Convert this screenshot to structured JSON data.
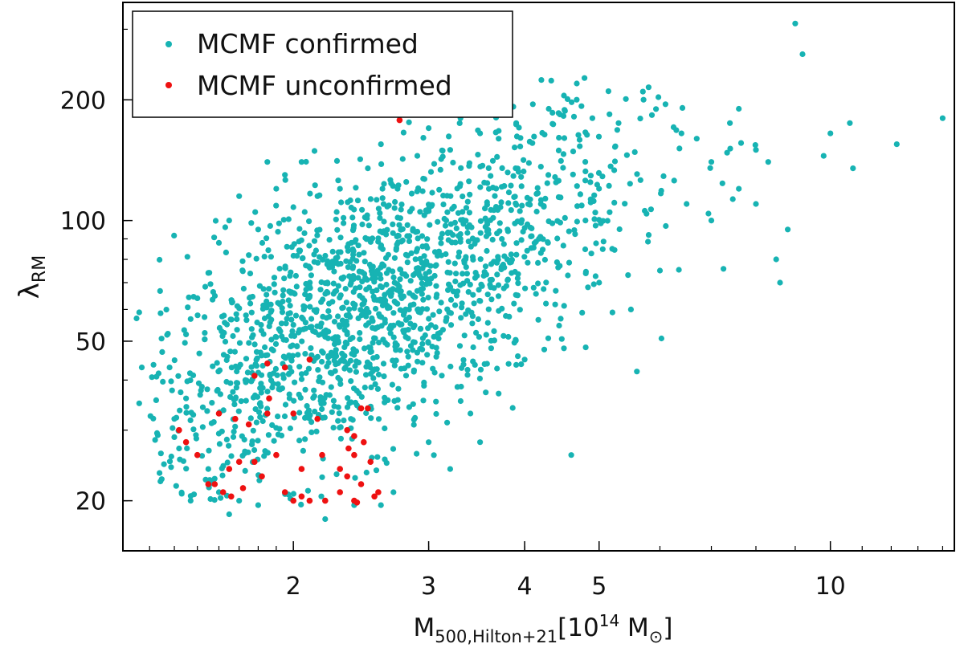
{
  "chart_data": {
    "type": "scatter",
    "title": "",
    "xscale": "log",
    "yscale": "log",
    "xlim": [
      1.2,
      14.5
    ],
    "ylim": [
      15,
      350
    ],
    "xticks": [
      {
        "value": 2,
        "label": "2"
      },
      {
        "value": 3,
        "label": "3"
      },
      {
        "value": 4,
        "label": "4"
      },
      {
        "value": 5,
        "label": "5"
      },
      {
        "value": 10,
        "label": "10"
      }
    ],
    "yticks": [
      {
        "value": 20,
        "label": "20"
      },
      {
        "value": 50,
        "label": "50"
      },
      {
        "value": 100,
        "label": "100"
      },
      {
        "value": 200,
        "label": "200"
      }
    ],
    "xlabel": {
      "main": "M",
      "sub": "500,Hilton+21",
      "bracket_open": "[10",
      "sup": "14",
      "unit": " M",
      "bracket_close": "]"
    },
    "ylabel": {
      "main": "λ",
      "sub": "RM"
    },
    "legend_position": "top-left",
    "series": [
      {
        "name": "MCMF confirmed",
        "color": "#17b3b3",
        "sample_points": [
          [
            1.25,
            57
          ],
          [
            1.26,
            59
          ],
          [
            1.27,
            43
          ],
          [
            1.26,
            35
          ],
          [
            1.35,
            47
          ],
          [
            1.38,
            43
          ],
          [
            1.42,
            27
          ],
          [
            1.45,
            52
          ],
          [
            1.47,
            20
          ],
          [
            1.5,
            64
          ],
          [
            1.55,
            74
          ],
          [
            1.6,
            88
          ],
          [
            1.65,
            100
          ],
          [
            1.7,
            115
          ],
          [
            1.75,
            82
          ],
          [
            1.8,
            95
          ],
          [
            1.85,
            140
          ],
          [
            1.9,
            120
          ],
          [
            1.95,
            130
          ],
          [
            2.0,
            108
          ],
          [
            2.05,
            140
          ],
          [
            2.15,
            115
          ],
          [
            2.3,
            120
          ],
          [
            2.5,
            135
          ],
          [
            2.6,
            155
          ],
          [
            2.9,
            145
          ],
          [
            3.0,
            170
          ],
          [
            3.2,
            150
          ],
          [
            3.3,
            180
          ],
          [
            3.5,
            165
          ],
          [
            3.7,
            160
          ],
          [
            3.9,
            175
          ],
          [
            4.1,
            195
          ],
          [
            4.3,
            190
          ],
          [
            4.5,
            205
          ],
          [
            4.9,
            180
          ],
          [
            5.3,
            175
          ],
          [
            5.8,
            215
          ],
          [
            6.1,
            195
          ],
          [
            6.4,
            165
          ],
          [
            6.7,
            160
          ],
          [
            7.0,
            140
          ],
          [
            7.4,
            175
          ],
          [
            7.6,
            190
          ],
          [
            8.0,
            150
          ],
          [
            8.3,
            140
          ],
          [
            8.8,
            95
          ],
          [
            9.0,
            310
          ],
          [
            9.2,
            260
          ],
          [
            9.8,
            145
          ],
          [
            10.0,
            165
          ],
          [
            10.6,
            175
          ],
          [
            10.7,
            135
          ],
          [
            12.2,
            155
          ],
          [
            14.0,
            180
          ],
          [
            5.5,
            60
          ],
          [
            5.6,
            42
          ],
          [
            6.0,
            75
          ],
          [
            8.5,
            80
          ],
          [
            8.6,
            70
          ],
          [
            4.6,
            26
          ],
          [
            3.7,
            37
          ],
          [
            3.5,
            28
          ],
          [
            3.2,
            24
          ],
          [
            3.0,
            28
          ],
          [
            2.2,
            18
          ],
          [
            1.65,
            18.5
          ],
          [
            1.45,
            36
          ],
          [
            1.4,
            32
          ],
          [
            1.55,
            24
          ],
          [
            1.6,
            21
          ],
          [
            1.7,
            20
          ],
          [
            1.8,
            19.5
          ],
          [
            2.4,
            19.5
          ],
          [
            2.6,
            19.5
          ],
          [
            2.7,
            21
          ],
          [
            3.4,
            33
          ],
          [
            4.0,
            45
          ],
          [
            4.5,
            48
          ],
          [
            5.0,
            70
          ],
          [
            5.2,
            85
          ],
          [
            6.5,
            110
          ],
          [
            7.0,
            100
          ],
          [
            7.6,
            120
          ],
          [
            8.0,
            110
          ],
          [
            4.8,
            100
          ],
          [
            4.2,
            110
          ],
          [
            3.8,
            95
          ],
          [
            3.3,
            90
          ],
          [
            2.9,
            85
          ]
        ]
      },
      {
        "name": "MCMF unconfirmed",
        "color": "#ee1111",
        "points": [
          [
            2.75,
            178
          ],
          [
            2.1,
            45
          ],
          [
            1.85,
            44
          ],
          [
            1.95,
            43
          ],
          [
            1.78,
            41
          ],
          [
            1.86,
            36
          ],
          [
            1.6,
            33
          ],
          [
            1.68,
            32
          ],
          [
            1.75,
            31
          ],
          [
            1.85,
            33
          ],
          [
            2.0,
            33
          ],
          [
            2.15,
            32
          ],
          [
            2.45,
            34
          ],
          [
            2.5,
            34
          ],
          [
            2.35,
            30
          ],
          [
            2.4,
            29
          ],
          [
            2.47,
            28
          ],
          [
            2.36,
            27
          ],
          [
            2.4,
            26
          ],
          [
            2.52,
            25
          ],
          [
            2.05,
            24
          ],
          [
            2.18,
            26
          ],
          [
            2.3,
            24
          ],
          [
            2.35,
            23
          ],
          [
            1.9,
            26
          ],
          [
            1.78,
            25
          ],
          [
            1.7,
            25
          ],
          [
            1.65,
            24
          ],
          [
            1.58,
            22
          ],
          [
            1.62,
            21
          ],
          [
            1.66,
            20.5
          ],
          [
            1.72,
            21.5
          ],
          [
            1.82,
            23
          ],
          [
            1.95,
            21
          ],
          [
            2.0,
            20
          ],
          [
            2.1,
            20
          ],
          [
            2.2,
            20
          ],
          [
            2.3,
            21
          ],
          [
            2.4,
            20
          ],
          [
            2.45,
            22
          ],
          [
            2.55,
            20.5
          ],
          [
            2.58,
            21
          ],
          [
            1.5,
            26
          ],
          [
            1.45,
            28
          ],
          [
            1.42,
            30
          ],
          [
            1.55,
            22
          ],
          [
            2.05,
            20.5
          ],
          [
            2.42,
            19.8
          ]
        ]
      }
    ]
  }
}
